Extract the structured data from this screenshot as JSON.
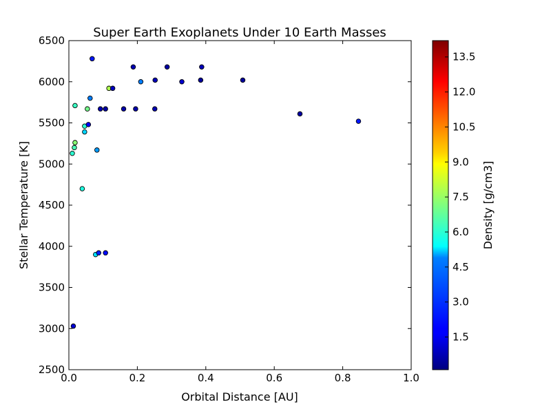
{
  "chart_data": {
    "type": "scatter",
    "title": "Super Earth Exoplanets Under 10 Earth Masses",
    "xlabel": "Orbital Distance [AU]",
    "ylabel": "Stellar Temperature [K]",
    "xlim": [
      0.0,
      1.0
    ],
    "ylim": [
      2500,
      6500
    ],
    "x_ticks": [
      "0.0",
      "0.2",
      "0.4",
      "0.6",
      "0.8",
      "1.0"
    ],
    "y_ticks": [
      "2500",
      "3000",
      "3500",
      "4000",
      "4500",
      "5000",
      "5500",
      "6000",
      "6500"
    ],
    "grid": false,
    "colormap": "jet",
    "colorbar": {
      "label": "Density [g/cm3]",
      "range": [
        0.1,
        14.2
      ],
      "ticks": [
        "1.5",
        "3.0",
        "4.5",
        "6.0",
        "7.5",
        "9.0",
        "10.5",
        "12.0",
        "13.5"
      ]
    },
    "points": [
      {
        "x": 0.013,
        "y": 3030,
        "density": 1.3
      },
      {
        "x": 0.078,
        "y": 3900,
        "density": 5.0
      },
      {
        "x": 0.087,
        "y": 3920,
        "density": 2.3
      },
      {
        "x": 0.107,
        "y": 3920,
        "density": 2.0
      },
      {
        "x": 0.039,
        "y": 4700,
        "density": 5.8
      },
      {
        "x": 0.01,
        "y": 5130,
        "density": 6.0
      },
      {
        "x": 0.016,
        "y": 5200,
        "density": 6.4
      },
      {
        "x": 0.018,
        "y": 5260,
        "density": 7.3
      },
      {
        "x": 0.082,
        "y": 5170,
        "density": 4.0
      },
      {
        "x": 0.046,
        "y": 5390,
        "density": 4.8
      },
      {
        "x": 0.046,
        "y": 5460,
        "density": 6.0
      },
      {
        "x": 0.057,
        "y": 5480,
        "density": 1.8
      },
      {
        "x": 0.018,
        "y": 5710,
        "density": 6.2
      },
      {
        "x": 0.054,
        "y": 5670,
        "density": 7.0
      },
      {
        "x": 0.062,
        "y": 5800,
        "density": 3.6
      },
      {
        "x": 0.068,
        "y": 6280,
        "density": 2.2
      },
      {
        "x": 0.092,
        "y": 5670,
        "density": 0.8
      },
      {
        "x": 0.107,
        "y": 5670,
        "density": 0.6
      },
      {
        "x": 0.117,
        "y": 5920,
        "density": 7.8
      },
      {
        "x": 0.128,
        "y": 5920,
        "density": 1.0
      },
      {
        "x": 0.16,
        "y": 5670,
        "density": 0.7
      },
      {
        "x": 0.188,
        "y": 6180,
        "density": 0.8
      },
      {
        "x": 0.195,
        "y": 5670,
        "density": 0.7
      },
      {
        "x": 0.21,
        "y": 6000,
        "density": 3.6
      },
      {
        "x": 0.252,
        "y": 6020,
        "density": 0.9
      },
      {
        "x": 0.251,
        "y": 5670,
        "density": 0.8
      },
      {
        "x": 0.287,
        "y": 6180,
        "density": 0.6
      },
      {
        "x": 0.33,
        "y": 6000,
        "density": 1.2
      },
      {
        "x": 0.385,
        "y": 6020,
        "density": 0.5
      },
      {
        "x": 0.388,
        "y": 6180,
        "density": 0.9
      },
      {
        "x": 0.508,
        "y": 6020,
        "density": 0.5
      },
      {
        "x": 0.675,
        "y": 5610,
        "density": 0.6
      },
      {
        "x": 0.846,
        "y": 5520,
        "density": 2.2
      }
    ]
  }
}
